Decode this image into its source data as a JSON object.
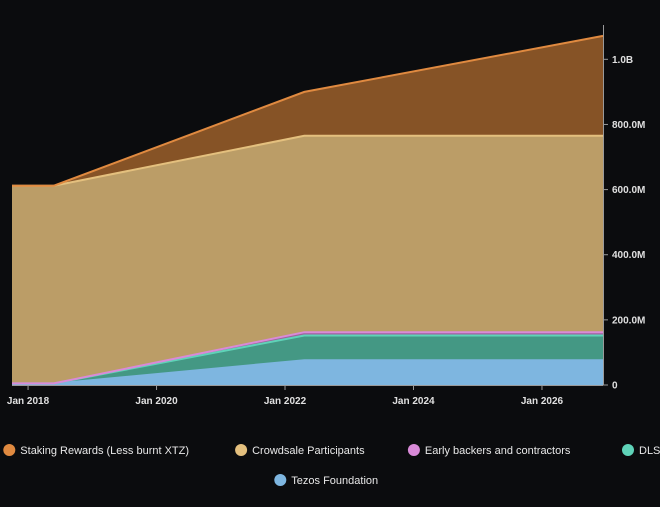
{
  "chart_data": {
    "type": "area",
    "stacked": true,
    "x_unit": "year",
    "x_ticks": [
      {
        "value": 2018,
        "label": "Jan 2018"
      },
      {
        "value": 2020,
        "label": "Jan 2020"
      },
      {
        "value": 2022,
        "label": "Jan 2022"
      },
      {
        "value": 2024,
        "label": "Jan 2024"
      },
      {
        "value": 2026,
        "label": "Jan 2026"
      }
    ],
    "y_ticks": [
      {
        "value": 0,
        "label": "0"
      },
      {
        "value": 200,
        "label": "200.0M"
      },
      {
        "value": 400,
        "label": "400.0M"
      },
      {
        "value": 600,
        "label": "600.0M"
      },
      {
        "value": 800,
        "label": "800.0M"
      },
      {
        "value": 1000,
        "label": "1.0B"
      }
    ],
    "xlim": [
      2017.75,
      2026.95
    ],
    "ylim": [
      0,
      1090
    ],
    "y_axis_position": "right",
    "grid": false,
    "legend_position": "bottom",
    "x": [
      2017.75,
      2018.4,
      2022.3,
      2026.95
    ],
    "series": [
      {
        "name": "Tezos Foundation",
        "color": "#7eb6e0",
        "values": [
          4,
          4,
          76,
          76
        ]
      },
      {
        "name": "DLS",
        "color": "#5fd3b8",
        "values": [
          1,
          1,
          76,
          76
        ]
      },
      {
        "name": "Early backers and contractors",
        "color": "#d98ad8",
        "values": [
          0,
          0,
          10,
          10
        ]
      },
      {
        "name": "Crowdsale Participants",
        "color": "#e4c07e",
        "values": [
          607,
          607,
          603,
          603
        ]
      },
      {
        "name": "Staking Rewards (Less burnt XTZ)",
        "color": "#e08a40",
        "values": [
          0,
          0,
          135,
          307
        ]
      }
    ],
    "legend_order": [
      "Staking Rewards (Less burnt XTZ)",
      "Crowdsale Participants",
      "Early backers and contractors",
      "DLS",
      "Tezos Foundation"
    ]
  }
}
